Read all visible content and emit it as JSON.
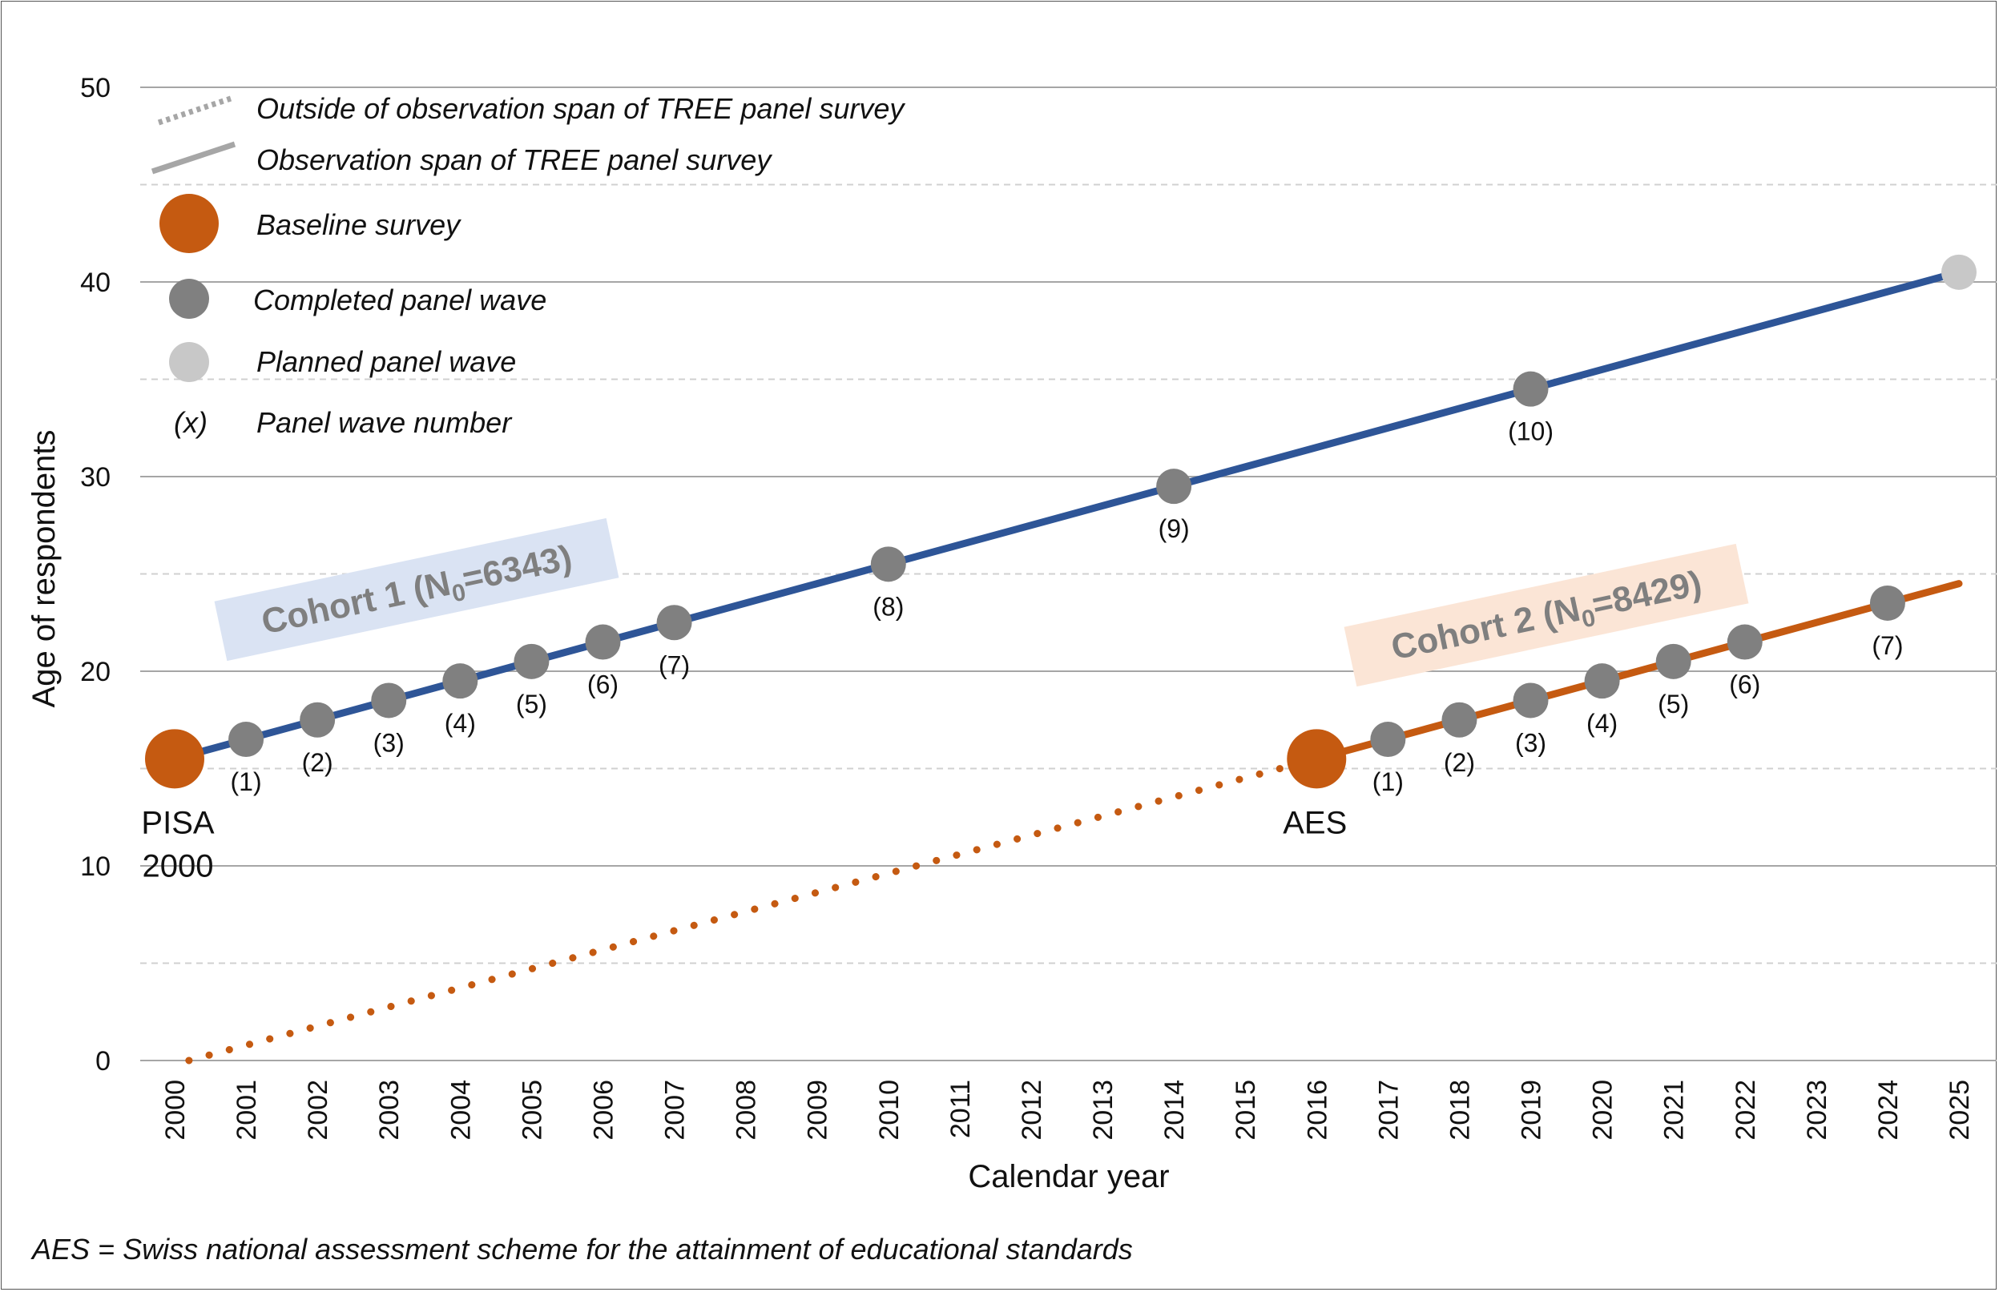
{
  "chart_data": {
    "type": "line",
    "xlabel": "Calendar year",
    "ylabel": "Age of respondents",
    "xlim": [
      2000,
      2025
    ],
    "ylim": [
      0,
      50
    ],
    "x_ticks": [
      "2000",
      "2001",
      "2002",
      "2003",
      "2004",
      "2005",
      "2006",
      "2007",
      "2008",
      "2009",
      "2010",
      "2011",
      "2012",
      "2013",
      "2014",
      "2015",
      "2016",
      "2017",
      "2018",
      "2019",
      "2020",
      "2021",
      "2022",
      "2023",
      "2024",
      "2025"
    ],
    "y_ticks": [
      "0",
      "10",
      "20",
      "30",
      "40",
      "50"
    ],
    "grid": "horizontal solid major, dashed minor",
    "colors": {
      "cohort1": "#2e5597",
      "cohort2": "#c55a11",
      "baseline": "#c55a11",
      "completed": "#808080",
      "planned": "#c8c8c8",
      "legend_line": "#a6a6a6",
      "cohort1_box": "#dae3f3",
      "cohort2_box": "#fbe5d6"
    },
    "series": [
      {
        "label": "Cohort 1 (N",
        "label_sub": "0",
        "label_end": "=6343)",
        "line": {
          "start": [
            2000,
            15.5
          ],
          "end": [
            2025,
            40.5
          ]
        },
        "baseline": {
          "x": 2000,
          "y": 15.5,
          "label_lines": [
            "PISA",
            "2000"
          ]
        },
        "waves": [
          {
            "x": 2001,
            "y": 16.5,
            "label": "(1)",
            "status": "completed"
          },
          {
            "x": 2002,
            "y": 17.5,
            "label": "(2)",
            "status": "completed"
          },
          {
            "x": 2003,
            "y": 18.5,
            "label": "(3)",
            "status": "completed"
          },
          {
            "x": 2004,
            "y": 19.5,
            "label": "(4)",
            "status": "completed"
          },
          {
            "x": 2005,
            "y": 20.5,
            "label": "(5)",
            "status": "completed"
          },
          {
            "x": 2006,
            "y": 21.5,
            "label": "(6)",
            "status": "completed"
          },
          {
            "x": 2007,
            "y": 22.5,
            "label": "(7)",
            "status": "completed"
          },
          {
            "x": 2010,
            "y": 25.5,
            "label": "(8)",
            "status": "completed"
          },
          {
            "x": 2014,
            "y": 29.5,
            "label": "(9)",
            "status": "completed"
          },
          {
            "x": 2019,
            "y": 34.5,
            "label": "(10)",
            "status": "completed"
          },
          {
            "x": 2025,
            "y": 40.5,
            "label": "",
            "status": "planned"
          }
        ]
      },
      {
        "label": "Cohort 2 (N",
        "label_sub": "0",
        "label_end": "=8429)",
        "dotted_line": {
          "start": [
            2000.2,
            0
          ],
          "end": [
            2016,
            15.5
          ]
        },
        "line": {
          "start": [
            2016,
            15.5
          ],
          "end": [
            2025,
            24.5
          ]
        },
        "baseline": {
          "x": 2016,
          "y": 15.5,
          "label_lines": [
            "AES"
          ]
        },
        "waves": [
          {
            "x": 2017,
            "y": 16.5,
            "label": "(1)",
            "status": "completed"
          },
          {
            "x": 2018,
            "y": 17.5,
            "label": "(2)",
            "status": "completed"
          },
          {
            "x": 2019,
            "y": 18.5,
            "label": "(3)",
            "status": "completed"
          },
          {
            "x": 2020,
            "y": 19.5,
            "label": "(4)",
            "status": "completed"
          },
          {
            "x": 2021,
            "y": 20.5,
            "label": "(5)",
            "status": "completed"
          },
          {
            "x": 2022,
            "y": 21.5,
            "label": "(6)",
            "status": "completed"
          },
          {
            "x": 2024,
            "y": 23.5,
            "label": "(7)",
            "status": "completed"
          }
        ]
      }
    ],
    "legend": {
      "placement": "top-left",
      "items": [
        {
          "symbol": "dotted-line",
          "text": "Outside of observation span of TREE panel survey"
        },
        {
          "symbol": "solid-line",
          "text": "Observation span of TREE panel survey"
        },
        {
          "symbol": "baseline-dot",
          "text": "Baseline survey"
        },
        {
          "symbol": "completed-dot",
          "text": "Completed panel wave"
        },
        {
          "symbol": "planned-dot",
          "text": "Planned panel wave"
        },
        {
          "symbol": "wave-number",
          "symbol_text": "(x)",
          "text": "Panel wave number"
        }
      ]
    },
    "footnote": "AES = Swiss national assessment scheme for the attainment of educational standards"
  }
}
